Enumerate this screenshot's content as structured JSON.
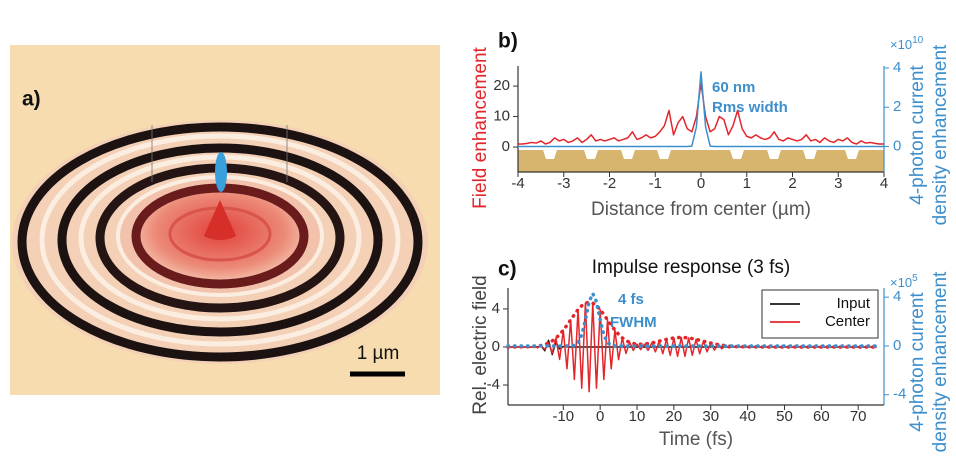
{
  "image_panel": {
    "label": "a)",
    "scale_bar": "1 µm"
  },
  "chart_data": [
    {
      "type": "line",
      "panel_label": "b)",
      "xlabel": "Distance from center (µm)",
      "ylabel": "Field enhancement",
      "ylabel_color": "#e3262b",
      "y2label": [
        "4-photon current",
        "density enhancement"
      ],
      "y2_color": "#3d8fcc",
      "y2_multiplier": {
        "base": "×10",
        "exponent": "10"
      },
      "annotations": [
        "60 nm",
        "Rms width"
      ],
      "xlim": [
        -4,
        4
      ],
      "xticks": [
        -4,
        -3,
        -2,
        -1,
        0,
        1,
        2,
        3,
        4
      ],
      "ylim": [
        -8.2,
        26.6
      ],
      "yticks": [
        0,
        10,
        20
      ],
      "y2lim": [
        -1.3,
        4.1
      ],
      "y2ticks": [
        0,
        2,
        4
      ],
      "x": [
        -4,
        -3.9,
        -3.8,
        -3.7,
        -3.6,
        -3.5,
        -3.4,
        -3.3,
        -3.2,
        -3.1,
        -3,
        -2.9,
        -2.8,
        -2.7,
        -2.6,
        -2.5,
        -2.4,
        -2.3,
        -2.2,
        -2.1,
        -2,
        -1.9,
        -1.8,
        -1.7,
        -1.6,
        -1.5,
        -1.4,
        -1.3,
        -1.2,
        -1.1,
        -1,
        -0.9,
        -0.8,
        -0.7,
        -0.6,
        -0.5,
        -0.4,
        -0.3,
        -0.2,
        -0.1,
        0,
        0.1,
        0.2,
        0.3,
        0.4,
        0.5,
        0.6,
        0.7,
        0.8,
        0.9,
        1,
        1.1,
        1.2,
        1.3,
        1.4,
        1.5,
        1.6,
        1.7,
        1.8,
        1.9,
        2,
        2.1,
        2.2,
        2.3,
        2.4,
        2.5,
        2.6,
        2.7,
        2.8,
        2.9,
        3,
        3.1,
        3.2,
        3.3,
        3.4,
        3.5,
        3.6,
        3.7,
        3.8,
        3.9,
        4
      ],
      "series": [
        {
          "color": "#e3262b",
          "style": "solid",
          "values": [
            1,
            1,
            1.2,
            1.5,
            1.3,
            2,
            1,
            1.5,
            3,
            2,
            2.5,
            1.5,
            2,
            3,
            1.5,
            2.5,
            4,
            2,
            2.5,
            2,
            2.5,
            3,
            2,
            2.5,
            3,
            5,
            2.5,
            3,
            4,
            3,
            3.5,
            5,
            7,
            12,
            4,
            8,
            10,
            6,
            5,
            10,
            21,
            10,
            5,
            6,
            10,
            9,
            4,
            7,
            12,
            6,
            3.5,
            3,
            4,
            3,
            2.5,
            3,
            5,
            2.5,
            2,
            3,
            2.5,
            2,
            2.5,
            4,
            2,
            2.5,
            1.5,
            3,
            2,
            1.5,
            2.5,
            2,
            3,
            1.5,
            1,
            2,
            1.3,
            1.5,
            1.2,
            1,
            1
          ]
        },
        {
          "color": "#3d8fcc",
          "style": "solid",
          "axis": "y2",
          "values": [
            0,
            0,
            0,
            0,
            0,
            0,
            0,
            0,
            0,
            0,
            0,
            0,
            0,
            0,
            0,
            0,
            0,
            0,
            0,
            0,
            0,
            0,
            0,
            0,
            0,
            0,
            0,
            0,
            0,
            0,
            0,
            0,
            0,
            0,
            0,
            0,
            0,
            0,
            0.02,
            1,
            3.8,
            1,
            0.02,
            0,
            0,
            0,
            0,
            0,
            0,
            0,
            0,
            0,
            0,
            0,
            0,
            0,
            0,
            0,
            0,
            0,
            0,
            0,
            0,
            0,
            0,
            0,
            0,
            0,
            0,
            0,
            0,
            0,
            0,
            0,
            0,
            0,
            0,
            0,
            0,
            0,
            0
          ]
        }
      ]
    },
    {
      "type": "line",
      "panel_label": "c)",
      "title": "Impulse response (3 fs)",
      "xlabel": "Time (fs)",
      "ylabel": "Rel. electric field",
      "ylabel_color": "#444444",
      "y2label": [
        "4-photon current",
        "density enhancement"
      ],
      "y2_color": "#3d8fcc",
      "y2_multiplier": {
        "base": "×10",
        "exponent": "5"
      },
      "annotations": [
        "4 fs",
        "FWHM"
      ],
      "legend": "upper right",
      "xlim": [
        -25,
        77
      ],
      "xticks": [
        -10,
        0,
        10,
        20,
        30,
        40,
        50,
        60,
        70
      ],
      "ylim": [
        -6.1,
        6.2
      ],
      "yticks": [
        -4,
        0,
        4
      ],
      "y2lim": [
        -4.84,
        4.75
      ],
      "y2ticks": [
        -4,
        0,
        4
      ],
      "x": [
        -25,
        -20,
        -19,
        -18,
        -17,
        -16,
        -15,
        -14,
        -13,
        -12,
        -11,
        -10,
        -9,
        -8,
        -7,
        -6,
        -5,
        -4,
        -3,
        -2,
        -1,
        0,
        1,
        2,
        3,
        4,
        5,
        6,
        7,
        8,
        9,
        10,
        11,
        12,
        13,
        14,
        15,
        16,
        17,
        18,
        19,
        20,
        21,
        22,
        23,
        24,
        25,
        26,
        27,
        28,
        29,
        30,
        31,
        32,
        33,
        34,
        35,
        36,
        37,
        38,
        39,
        40,
        45,
        50,
        55,
        60,
        65,
        70,
        75
      ],
      "series": [
        {
          "name": "Input",
          "color": "#1a1a1a",
          "style": "solid",
          "values": [
            0,
            0,
            0,
            0,
            0,
            0.1,
            -0.4,
            0.7,
            -0.8,
            0.5,
            -0.2,
            0.05,
            0,
            0,
            0,
            0,
            0,
            0,
            0,
            0,
            0,
            0,
            0,
            0,
            0,
            0,
            0,
            0,
            0,
            0,
            0,
            0,
            0,
            0,
            0,
            0,
            0,
            0,
            0,
            0,
            0,
            0,
            0,
            0,
            0,
            0,
            0,
            0,
            0,
            0,
            0,
            0,
            0,
            0,
            0,
            0,
            0,
            0,
            0,
            0,
            0,
            0,
            0,
            0,
            0,
            0,
            0,
            0,
            0
          ]
        },
        {
          "name": "Center",
          "color": "#e3262b",
          "style": "solid",
          "values": [
            0,
            0.01,
            -0.03,
            0.05,
            -0.09,
            0.16,
            -0.26,
            0.42,
            -0.64,
            0.93,
            -1.31,
            1.76,
            -2.29,
            2.85,
            -3.41,
            3.93,
            -4.34,
            4.61,
            -4.7,
            4.61,
            -4.34,
            3.93,
            -3.41,
            2.85,
            -2.3,
            1.77,
            -1.33,
            0.96,
            -0.68,
            0.49,
            -0.36,
            0.3,
            -0.28,
            0.3,
            -0.36,
            0.42,
            -0.51,
            0.61,
            -0.71,
            0.8,
            -0.88,
            0.95,
            -0.99,
            1,
            -0.99,
            0.95,
            -0.88,
            0.8,
            -0.71,
            0.61,
            -0.51,
            0.41,
            -0.33,
            0.25,
            -0.19,
            0.14,
            -0.1,
            0.07,
            -0.04,
            0.03,
            -0.02,
            0.01,
            0,
            0,
            0,
            0,
            0,
            0,
            0
          ]
        },
        {
          "color": "#e3262b",
          "style": "dotted",
          "values": [
            0,
            0.01,
            0.03,
            0.05,
            0.09,
            0.16,
            0.26,
            0.42,
            0.64,
            0.93,
            1.31,
            1.76,
            2.29,
            2.85,
            3.41,
            3.93,
            4.34,
            4.61,
            4.7,
            4.61,
            4.34,
            3.93,
            3.41,
            2.85,
            2.3,
            1.77,
            1.33,
            0.96,
            0.68,
            0.49,
            0.36,
            0.3,
            0.28,
            0.3,
            0.36,
            0.42,
            0.51,
            0.61,
            0.71,
            0.8,
            0.88,
            0.95,
            0.99,
            1,
            0.99,
            0.95,
            0.88,
            0.8,
            0.71,
            0.61,
            0.51,
            0.41,
            0.33,
            0.25,
            0.19,
            0.14,
            0.1,
            0.07,
            0.04,
            0.03,
            0.02,
            0.01,
            0,
            0,
            0,
            0,
            0,
            0,
            0
          ]
        },
        {
          "color": "#3d8fcc",
          "style": "dotted",
          "axis": "y2",
          "values": [
            0,
            0,
            0,
            0,
            0,
            0,
            0,
            0,
            0,
            0,
            0,
            0,
            0,
            0,
            0.06,
            0.27,
            0.91,
            2.15,
            3.62,
            4.3,
            3.62,
            2.15,
            0.91,
            0.27,
            0.06,
            0,
            0,
            0,
            0,
            0,
            0,
            0,
            0,
            0,
            0,
            0,
            0,
            0,
            0,
            0,
            0,
            0,
            0,
            0,
            0,
            0,
            0,
            0,
            0,
            0,
            0,
            0,
            0,
            0,
            0,
            0,
            0,
            0,
            0,
            0,
            0,
            0,
            0,
            0,
            0,
            0,
            0,
            0,
            0
          ]
        }
      ]
    }
  ]
}
